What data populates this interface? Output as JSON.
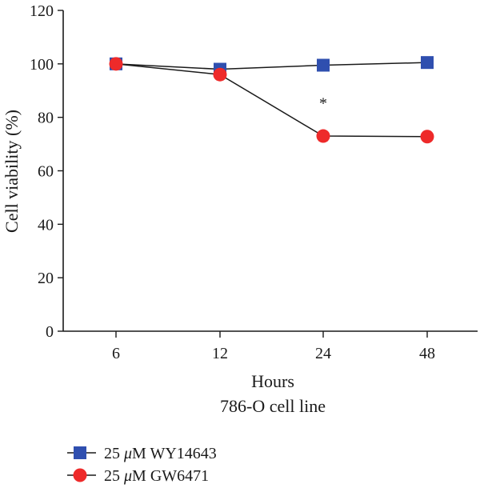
{
  "chart_data": {
    "type": "line",
    "categories": [
      "6",
      "12",
      "24",
      "48"
    ],
    "xlabel": "Hours",
    "subtitle": "786-O cell line",
    "ylabel": "Cell viability (%)",
    "ylim": [
      0,
      120
    ],
    "yticks": [
      0,
      20,
      40,
      60,
      80,
      100,
      120
    ],
    "grid": false,
    "legend_position": "bottom-left",
    "series": [
      {
        "name": "25 μM WY14643",
        "legend_prefix": "25 ",
        "legend_italic": "μ",
        "legend_suffix": "M WY14643",
        "marker": "square",
        "color": "#2f4faf",
        "values": [
          100,
          98,
          99.5,
          100.5
        ]
      },
      {
        "name": "25 μM GW6471",
        "legend_prefix": "25 ",
        "legend_italic": "μ",
        "legend_suffix": "M GW6471",
        "marker": "circle",
        "color": "#ee2a2a",
        "values": [
          100,
          96,
          73,
          72.8
        ]
      }
    ],
    "annotations": [
      {
        "text": "*",
        "category": "24",
        "y": 87
      }
    ]
  }
}
